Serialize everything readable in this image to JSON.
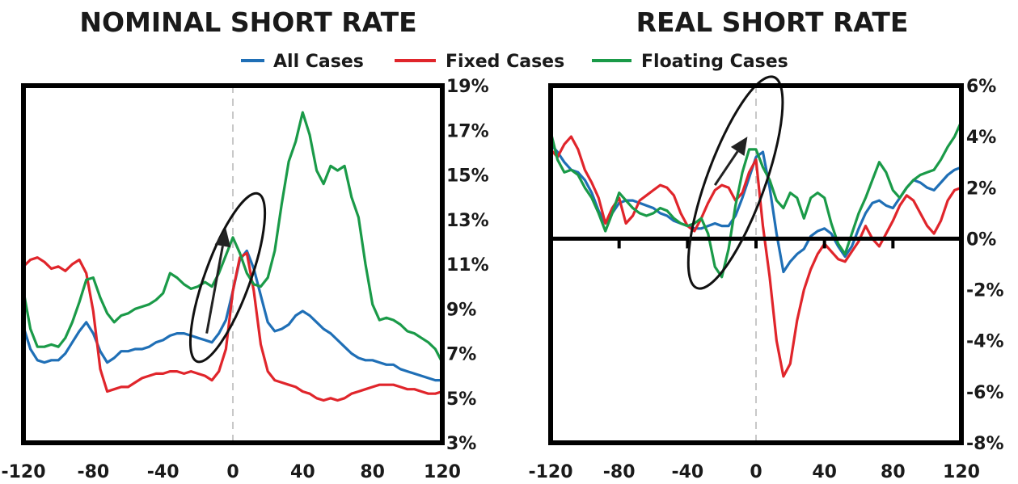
{
  "legend": {
    "placement": "top-center",
    "items": [
      {
        "label": "All Cases",
        "color": "#1f6fb6"
      },
      {
        "label": "Fixed Cases",
        "color": "#e0252b"
      },
      {
        "label": "Floating Cases",
        "color": "#1a9a48"
      }
    ]
  },
  "chart_data": [
    {
      "type": "line",
      "title": "NOMINAL SHORT RATE",
      "xlabel": "",
      "ylabel": "",
      "xlim": [
        -120,
        120
      ],
      "ylim": [
        3,
        19
      ],
      "y_axis_side": "right",
      "x_ticks": [
        "-120",
        "-80",
        "-40",
        "0",
        "40",
        "80",
        "120"
      ],
      "x_tick_values": [
        -120,
        -80,
        -40,
        0,
        40,
        80,
        120
      ],
      "y_ticks": [
        "3%",
        "5%",
        "7%",
        "9%",
        "11%",
        "13%",
        "15%",
        "17%",
        "19%"
      ],
      "y_tick_values": [
        3,
        5,
        7,
        9,
        11,
        13,
        15,
        17,
        19
      ],
      "grid": false,
      "reference_line_x": 0,
      "annotation": "ellipse with upward arrow around the pre-peak rise near x = 0",
      "annotation_data": {
        "ellipse": {
          "cx": -3,
          "cy": 10.4,
          "rx": 13,
          "ry": 4.0,
          "rotate_deg": 20
        },
        "arrow": {
          "from": [
            -15,
            7.9
          ],
          "to": [
            -4,
            12.6
          ]
        }
      },
      "series": [
        {
          "name": "All Cases",
          "color": "#1f6fb6",
          "x": [
            -120,
            -116,
            -112,
            -108,
            -104,
            -100,
            -96,
            -92,
            -88,
            -84,
            -80,
            -76,
            -72,
            -68,
            -64,
            -60,
            -56,
            -52,
            -48,
            -44,
            -40,
            -36,
            -32,
            -28,
            -24,
            -20,
            -16,
            -12,
            -8,
            -4,
            0,
            4,
            8,
            12,
            16,
            20,
            24,
            28,
            32,
            36,
            40,
            44,
            48,
            52,
            56,
            60,
            64,
            68,
            72,
            76,
            80,
            84,
            88,
            92,
            96,
            100,
            104,
            108,
            112,
            116,
            120
          ],
          "y": [
            8.2,
            7.2,
            6.7,
            6.6,
            6.7,
            6.7,
            7.0,
            7.5,
            8.0,
            8.4,
            7.9,
            7.1,
            6.6,
            6.8,
            7.1,
            7.1,
            7.2,
            7.2,
            7.3,
            7.5,
            7.6,
            7.8,
            7.9,
            7.9,
            7.8,
            7.7,
            7.6,
            7.5,
            7.9,
            8.5,
            9.8,
            11.2,
            11.6,
            10.8,
            9.6,
            8.4,
            8.0,
            8.1,
            8.3,
            8.7,
            8.9,
            8.7,
            8.4,
            8.1,
            7.9,
            7.6,
            7.3,
            7.0,
            6.8,
            6.7,
            6.7,
            6.6,
            6.5,
            6.5,
            6.3,
            6.2,
            6.1,
            6.0,
            5.9,
            5.8,
            5.8
          ]
        },
        {
          "name": "Fixed Cases",
          "color": "#e0252b",
          "x": [
            -120,
            -116,
            -112,
            -108,
            -104,
            -100,
            -96,
            -92,
            -88,
            -84,
            -80,
            -76,
            -72,
            -68,
            -64,
            -60,
            -56,
            -52,
            -48,
            -44,
            -40,
            -36,
            -32,
            -28,
            -24,
            -20,
            -16,
            -12,
            -8,
            -4,
            0,
            4,
            8,
            12,
            16,
            20,
            24,
            28,
            32,
            36,
            40,
            44,
            48,
            52,
            56,
            60,
            64,
            68,
            72,
            76,
            80,
            84,
            88,
            92,
            96,
            100,
            104,
            108,
            112,
            116,
            120
          ],
          "y": [
            10.9,
            11.2,
            11.3,
            11.1,
            10.8,
            10.9,
            10.7,
            11.0,
            11.2,
            10.6,
            8.9,
            6.3,
            5.3,
            5.4,
            5.5,
            5.5,
            5.7,
            5.9,
            6.0,
            6.1,
            6.1,
            6.2,
            6.2,
            6.1,
            6.2,
            6.1,
            6.0,
            5.8,
            6.2,
            7.2,
            9.8,
            11.3,
            11.5,
            9.8,
            7.4,
            6.2,
            5.8,
            5.7,
            5.6,
            5.5,
            5.3,
            5.2,
            5.0,
            4.9,
            5.0,
            4.9,
            5.0,
            5.2,
            5.3,
            5.4,
            5.5,
            5.6,
            5.6,
            5.6,
            5.5,
            5.4,
            5.4,
            5.3,
            5.2,
            5.2,
            5.3
          ]
        },
        {
          "name": "Floating Cases",
          "color": "#1a9a48",
          "x": [
            -120,
            -116,
            -112,
            -108,
            -104,
            -100,
            -96,
            -92,
            -88,
            -84,
            -80,
            -76,
            -72,
            -68,
            -64,
            -60,
            -56,
            -52,
            -48,
            -44,
            -40,
            -36,
            -32,
            -28,
            -24,
            -20,
            -16,
            -12,
            -8,
            -4,
            0,
            4,
            8,
            12,
            16,
            20,
            24,
            28,
            32,
            36,
            40,
            44,
            48,
            52,
            56,
            60,
            64,
            68,
            72,
            76,
            80,
            84,
            88,
            92,
            96,
            100,
            104,
            108,
            112,
            116,
            120
          ],
          "y": [
            9.8,
            8.1,
            7.3,
            7.3,
            7.4,
            7.3,
            7.7,
            8.4,
            9.3,
            10.3,
            10.4,
            9.5,
            8.8,
            8.4,
            8.7,
            8.8,
            9.0,
            9.1,
            9.2,
            9.4,
            9.7,
            10.6,
            10.4,
            10.1,
            9.9,
            10.0,
            10.2,
            10.0,
            10.6,
            11.4,
            12.2,
            11.5,
            10.6,
            10.1,
            10.0,
            10.4,
            11.6,
            13.7,
            15.6,
            16.5,
            17.8,
            16.8,
            15.2,
            14.6,
            15.4,
            15.2,
            15.4,
            14.0,
            13.1,
            11.0,
            9.2,
            8.5,
            8.6,
            8.5,
            8.3,
            8.0,
            7.9,
            7.7,
            7.5,
            7.2,
            6.6
          ]
        }
      ]
    },
    {
      "type": "line",
      "title": "REAL SHORT RATE",
      "xlabel": "",
      "ylabel": "",
      "xlim": [
        -120,
        120
      ],
      "ylim": [
        -8,
        6
      ],
      "y_axis_side": "right",
      "x_ticks": [
        "-120",
        "-80",
        "-40",
        "0",
        "40",
        "80",
        "120"
      ],
      "x_tick_values": [
        -120,
        -80,
        -40,
        0,
        40,
        80,
        120
      ],
      "y_ticks": [
        "-8%",
        "-6%",
        "-4%",
        "-2%",
        "0%",
        "2%",
        "4%",
        "6%"
      ],
      "y_tick_values": [
        -8,
        -6,
        -4,
        -2,
        0,
        2,
        4,
        6
      ],
      "grid": false,
      "zero_line": true,
      "reference_line_x": 0,
      "annotation": "ellipse with upward arrow around the pre-peak rise near x = 0",
      "annotation_data": {
        "ellipse": {
          "cx": -12,
          "cy": 2.2,
          "rx": 17,
          "ry": 4.4,
          "rotate_deg": 20
        },
        "arrow": {
          "from": [
            -24,
            2.1
          ],
          "to": [
            -5,
            4.0
          ]
        }
      },
      "series": [
        {
          "name": "All Cases",
          "color": "#1f6fb6",
          "x": [
            -120,
            -116,
            -112,
            -108,
            -104,
            -100,
            -96,
            -92,
            -88,
            -84,
            -80,
            -76,
            -72,
            -68,
            -64,
            -60,
            -56,
            -52,
            -48,
            -44,
            -40,
            -36,
            -32,
            -28,
            -24,
            -20,
            -16,
            -12,
            -8,
            -4,
            0,
            4,
            8,
            12,
            16,
            20,
            24,
            28,
            32,
            36,
            40,
            44,
            48,
            52,
            56,
            60,
            64,
            68,
            72,
            76,
            80,
            84,
            88,
            92,
            96,
            100,
            104,
            108,
            112,
            116,
            120
          ],
          "y": [
            3.7,
            3.4,
            3.0,
            2.7,
            2.6,
            2.3,
            1.8,
            1.1,
            0.6,
            1.0,
            1.4,
            1.5,
            1.5,
            1.4,
            1.3,
            1.2,
            1.0,
            0.9,
            0.7,
            0.6,
            0.5,
            0.4,
            0.4,
            0.5,
            0.6,
            0.5,
            0.5,
            0.9,
            1.6,
            2.4,
            3.2,
            3.4,
            2.0,
            0.2,
            -1.3,
            -0.9,
            -0.6,
            -0.4,
            0.1,
            0.3,
            0.4,
            0.2,
            -0.3,
            -0.7,
            -0.3,
            0.4,
            1.0,
            1.4,
            1.5,
            1.3,
            1.2,
            1.6,
            2.0,
            2.3,
            2.2,
            2.0,
            1.9,
            2.2,
            2.5,
            2.7,
            2.8
          ]
        },
        {
          "name": "Fixed Cases",
          "color": "#e0252b",
          "x": [
            -120,
            -116,
            -112,
            -108,
            -104,
            -100,
            -96,
            -92,
            -88,
            -84,
            -80,
            -76,
            -72,
            -68,
            -64,
            -60,
            -56,
            -52,
            -48,
            -44,
            -40,
            -36,
            -32,
            -28,
            -24,
            -20,
            -16,
            -12,
            -8,
            -4,
            0,
            4,
            8,
            12,
            16,
            20,
            24,
            28,
            32,
            36,
            40,
            44,
            48,
            52,
            56,
            60,
            64,
            68,
            72,
            76,
            80,
            84,
            88,
            92,
            96,
            100,
            104,
            108,
            112,
            116,
            120
          ],
          "y": [
            3.5,
            3.2,
            3.7,
            4.0,
            3.5,
            2.7,
            2.2,
            1.6,
            0.6,
            1.2,
            1.6,
            0.6,
            0.9,
            1.5,
            1.7,
            1.9,
            2.1,
            2.0,
            1.7,
            1.0,
            0.5,
            0.3,
            0.8,
            1.4,
            1.9,
            2.1,
            2.0,
            1.5,
            1.8,
            2.6,
            3.1,
            0.5,
            -1.5,
            -4.0,
            -5.4,
            -4.9,
            -3.2,
            -2.0,
            -1.2,
            -0.6,
            -0.2,
            -0.5,
            -0.8,
            -0.9,
            -0.5,
            -0.1,
            0.5,
            0.0,
            -0.3,
            0.2,
            0.7,
            1.3,
            1.7,
            1.5,
            1.0,
            0.5,
            0.2,
            0.7,
            1.5,
            1.9,
            2.0
          ]
        },
        {
          "name": "Floating Cases",
          "color": "#1a9a48",
          "x": [
            -120,
            -116,
            -112,
            -108,
            -104,
            -100,
            -96,
            -92,
            -88,
            -84,
            -80,
            -76,
            -72,
            -68,
            -64,
            -60,
            -56,
            -52,
            -48,
            -44,
            -40,
            -36,
            -32,
            -28,
            -24,
            -20,
            -16,
            -12,
            -8,
            -4,
            0,
            4,
            8,
            12,
            16,
            20,
            24,
            28,
            32,
            36,
            40,
            44,
            48,
            52,
            56,
            60,
            64,
            68,
            72,
            76,
            80,
            84,
            88,
            92,
            96,
            100,
            104,
            108,
            112,
            116,
            120
          ],
          "y": [
            4.2,
            3.1,
            2.6,
            2.7,
            2.5,
            2.0,
            1.6,
            1.0,
            0.3,
            1.0,
            1.8,
            1.5,
            1.2,
            1.0,
            0.9,
            1.0,
            1.2,
            1.1,
            0.8,
            0.6,
            0.5,
            0.6,
            0.8,
            0.2,
            -1.1,
            -1.5,
            -0.4,
            1.3,
            2.6,
            3.5,
            3.5,
            2.8,
            2.3,
            1.5,
            1.2,
            1.8,
            1.6,
            0.8,
            1.6,
            1.8,
            1.6,
            0.6,
            -0.2,
            -0.6,
            0.2,
            1.0,
            1.6,
            2.3,
            3.0,
            2.6,
            1.9,
            1.6,
            2.0,
            2.3,
            2.5,
            2.6,
            2.7,
            3.1,
            3.6,
            4.0,
            4.6
          ]
        }
      ]
    }
  ]
}
